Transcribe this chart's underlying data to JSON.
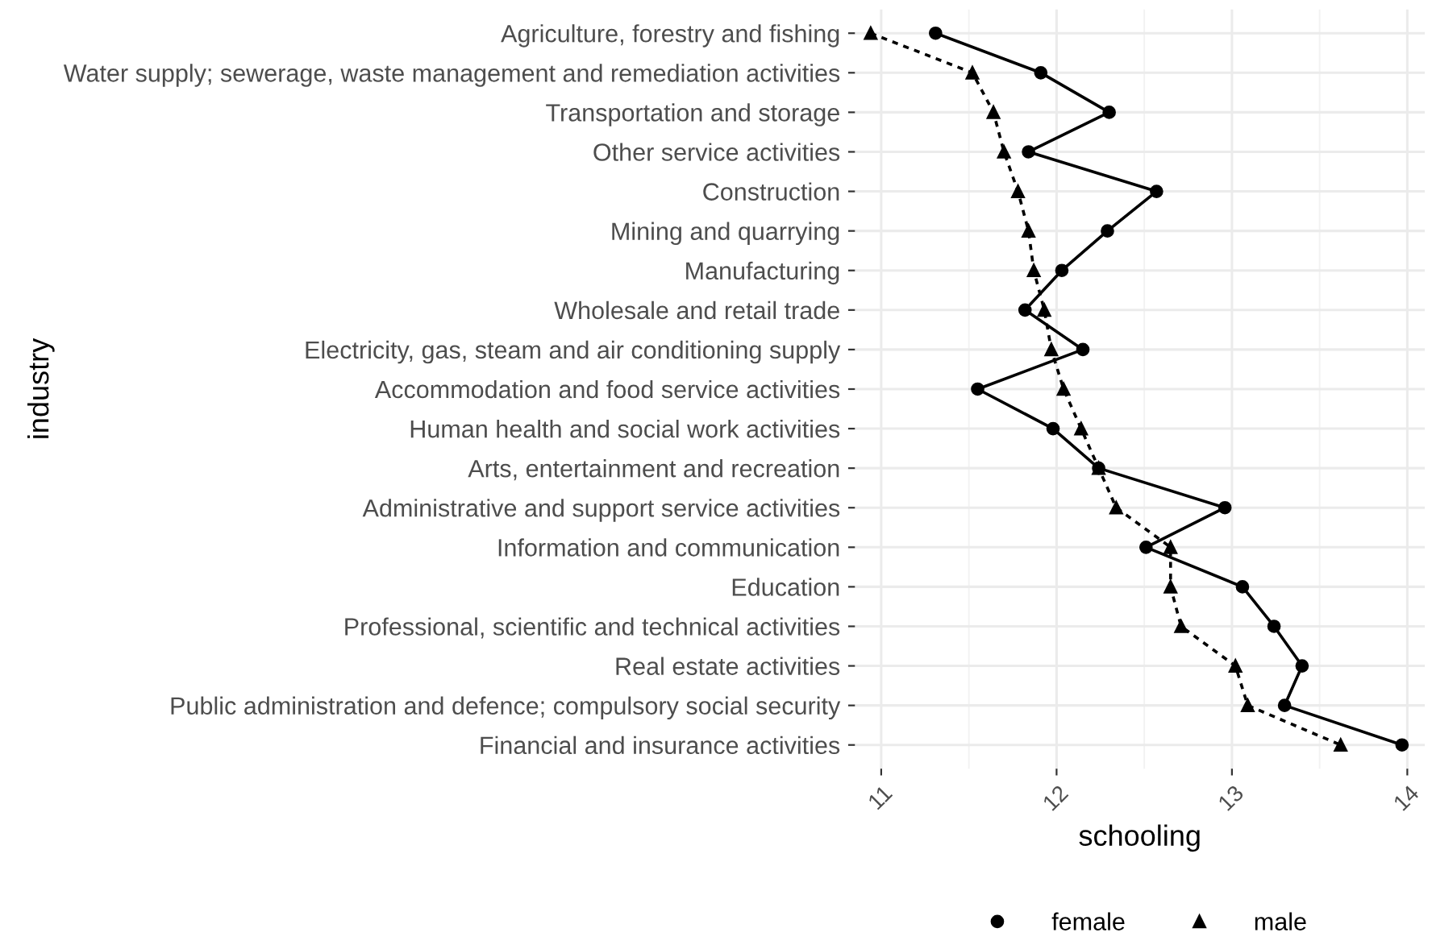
{
  "chart_data": {
    "type": "line",
    "orientation": "horizontal",
    "xlabel": "schooling",
    "ylabel": "industry",
    "categories": [
      "Agriculture, forestry and fishing",
      "Water supply; sewerage, waste management and remediation activities",
      "Transportation and storage",
      "Other service activities",
      "Construction",
      "Mining and quarrying",
      "Manufacturing",
      "Wholesale and retail trade",
      "Electricity, gas, steam and air conditioning supply",
      "Accommodation and food service activities",
      "Human health and social work activities",
      "Arts, entertainment and recreation",
      "Administrative and support service activities",
      "Information and communication",
      "Education",
      "Professional, scientific and technical activities",
      "Real estate activities",
      "Public administration and defence; compulsory social security",
      "Financial and insurance activities"
    ],
    "series": [
      {
        "name": "female",
        "color": "#000000",
        "marker": "circle",
        "line_style": "solid",
        "values": [
          11.31,
          11.91,
          12.3,
          11.84,
          12.57,
          12.29,
          12.03,
          11.82,
          12.15,
          11.55,
          11.98,
          12.24,
          12.96,
          12.51,
          13.06,
          13.24,
          13.4,
          13.3,
          13.97
        ]
      },
      {
        "name": "male",
        "color": "#000000",
        "marker": "triangle",
        "line_style": "dotted",
        "values": [
          10.94,
          11.52,
          11.64,
          11.7,
          11.78,
          11.84,
          11.87,
          11.93,
          11.97,
          12.04,
          12.14,
          12.24,
          12.34,
          12.65,
          12.65,
          12.71,
          13.02,
          13.09,
          13.62
        ]
      }
    ],
    "xlim": [
      10.85,
      14.1
    ],
    "xticks": [
      11,
      12,
      13,
      14
    ],
    "grid": true,
    "legend": "bottom"
  }
}
